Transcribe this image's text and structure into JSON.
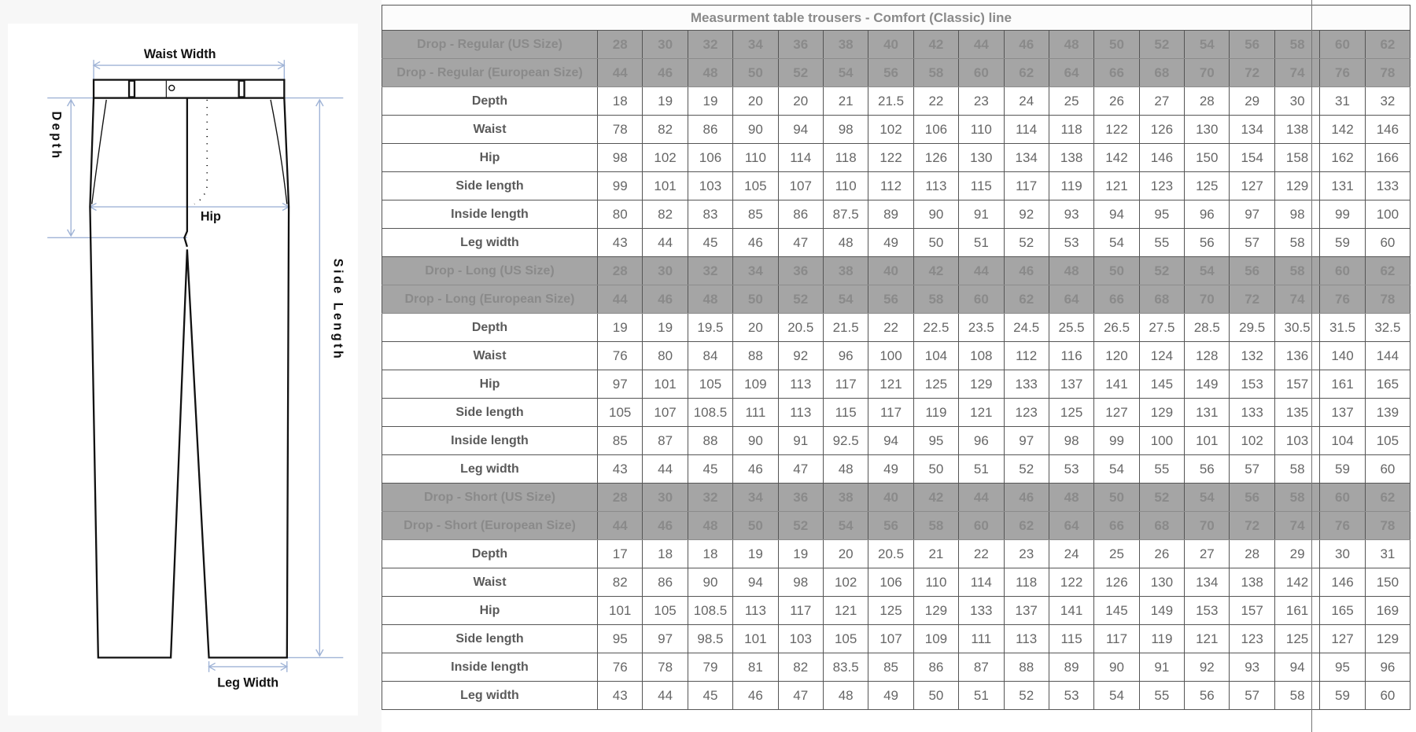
{
  "diagram": {
    "labels": {
      "waist_width": "Waist Width",
      "depth": "Depth",
      "hip": "Hip",
      "side_length": "Side Length",
      "leg_width": "Leg Width"
    },
    "colors": {
      "measure_line": "#9fb3d6",
      "outline": "#111111"
    }
  },
  "table": {
    "title": "Measurment table trousers - Comfort (Classic) line",
    "colors": {
      "header_bg": "#a5a5a5",
      "header_text": "#8a8a8a",
      "border": "#555555",
      "text": "#666666"
    },
    "sections": [
      {
        "us_label": "Drop - Regular (US Size)",
        "us_sizes": [
          "28",
          "30",
          "32",
          "34",
          "36",
          "38",
          "40",
          "42",
          "44",
          "46",
          "48",
          "50",
          "52",
          "54",
          "56",
          "58",
          "60",
          "62"
        ],
        "eu_label": "Drop - Regular (European Size)",
        "eu_sizes": [
          "44",
          "46",
          "48",
          "50",
          "52",
          "54",
          "56",
          "58",
          "60",
          "62",
          "64",
          "66",
          "68",
          "70",
          "72",
          "74",
          "76",
          "78"
        ],
        "rows": [
          {
            "label": "Depth",
            "values": [
              "18",
              "19",
              "19",
              "20",
              "20",
              "21",
              "21.5",
              "22",
              "23",
              "24",
              "25",
              "26",
              "27",
              "28",
              "29",
              "30",
              "31",
              "32"
            ]
          },
          {
            "label": "Waist",
            "values": [
              "78",
              "82",
              "86",
              "90",
              "94",
              "98",
              "102",
              "106",
              "110",
              "114",
              "118",
              "122",
              "126",
              "130",
              "134",
              "138",
              "142",
              "146"
            ]
          },
          {
            "label": "Hip",
            "values": [
              "98",
              "102",
              "106",
              "110",
              "114",
              "118",
              "122",
              "126",
              "130",
              "134",
              "138",
              "142",
              "146",
              "150",
              "154",
              "158",
              "162",
              "166"
            ]
          },
          {
            "label": "Side length",
            "values": [
              "99",
              "101",
              "103",
              "105",
              "107",
              "110",
              "112",
              "113",
              "115",
              "117",
              "119",
              "121",
              "123",
              "125",
              "127",
              "129",
              "131",
              "133"
            ]
          },
          {
            "label": "Inside length",
            "values": [
              "80",
              "82",
              "83",
              "85",
              "86",
              "87.5",
              "89",
              "90",
              "91",
              "92",
              "93",
              "94",
              "95",
              "96",
              "97",
              "98",
              "99",
              "100"
            ]
          },
          {
            "label": "Leg width",
            "values": [
              "43",
              "44",
              "45",
              "46",
              "47",
              "48",
              "49",
              "50",
              "51",
              "52",
              "53",
              "54",
              "55",
              "56",
              "57",
              "58",
              "59",
              "60"
            ]
          }
        ]
      },
      {
        "us_label": "Drop - Long (US Size)",
        "us_sizes": [
          "28",
          "30",
          "32",
          "34",
          "36",
          "38",
          "40",
          "42",
          "44",
          "46",
          "48",
          "50",
          "52",
          "54",
          "56",
          "58",
          "60",
          "62"
        ],
        "eu_label": "Drop - Long (European Size)",
        "eu_sizes": [
          "44",
          "46",
          "48",
          "50",
          "52",
          "54",
          "56",
          "58",
          "60",
          "62",
          "64",
          "66",
          "68",
          "70",
          "72",
          "74",
          "76",
          "78"
        ],
        "rows": [
          {
            "label": "Depth",
            "values": [
              "19",
              "19",
              "19.5",
              "20",
              "20.5",
              "21.5",
              "22",
              "22.5",
              "23.5",
              "24.5",
              "25.5",
              "26.5",
              "27.5",
              "28.5",
              "29.5",
              "30.5",
              "31.5",
              "32.5"
            ]
          },
          {
            "label": "Waist",
            "values": [
              "76",
              "80",
              "84",
              "88",
              "92",
              "96",
              "100",
              "104",
              "108",
              "112",
              "116",
              "120",
              "124",
              "128",
              "132",
              "136",
              "140",
              "144"
            ]
          },
          {
            "label": "Hip",
            "values": [
              "97",
              "101",
              "105",
              "109",
              "113",
              "117",
              "121",
              "125",
              "129",
              "133",
              "137",
              "141",
              "145",
              "149",
              "153",
              "157",
              "161",
              "165"
            ]
          },
          {
            "label": "Side length",
            "values": [
              "105",
              "107",
              "108.5",
              "111",
              "113",
              "115",
              "117",
              "119",
              "121",
              "123",
              "125",
              "127",
              "129",
              "131",
              "133",
              "135",
              "137",
              "139"
            ]
          },
          {
            "label": "Inside length",
            "values": [
              "85",
              "87",
              "88",
              "90",
              "91",
              "92.5",
              "94",
              "95",
              "96",
              "97",
              "98",
              "99",
              "100",
              "101",
              "102",
              "103",
              "104",
              "105"
            ]
          },
          {
            "label": "Leg width",
            "values": [
              "43",
              "44",
              "45",
              "46",
              "47",
              "48",
              "49",
              "50",
              "51",
              "52",
              "53",
              "54",
              "55",
              "56",
              "57",
              "58",
              "59",
              "60"
            ]
          }
        ]
      },
      {
        "us_label": "Drop - Short (US Size)",
        "us_sizes": [
          "28",
          "30",
          "32",
          "34",
          "36",
          "38",
          "40",
          "42",
          "44",
          "46",
          "48",
          "50",
          "52",
          "54",
          "56",
          "58",
          "60",
          "62"
        ],
        "eu_label": "Drop - Short (European Size)",
        "eu_sizes": [
          "44",
          "46",
          "48",
          "50",
          "52",
          "54",
          "56",
          "58",
          "60",
          "62",
          "64",
          "66",
          "68",
          "70",
          "72",
          "74",
          "76",
          "78"
        ],
        "rows": [
          {
            "label": "Depth",
            "values": [
              "17",
              "18",
              "18",
              "19",
              "19",
              "20",
              "20.5",
              "21",
              "22",
              "23",
              "24",
              "25",
              "26",
              "27",
              "28",
              "29",
              "30",
              "31"
            ]
          },
          {
            "label": "Waist",
            "values": [
              "82",
              "86",
              "90",
              "94",
              "98",
              "102",
              "106",
              "110",
              "114",
              "118",
              "122",
              "126",
              "130",
              "134",
              "138",
              "142",
              "146",
              "150"
            ]
          },
          {
            "label": "Hip",
            "values": [
              "101",
              "105",
              "108.5",
              "113",
              "117",
              "121",
              "125",
              "129",
              "133",
              "137",
              "141",
              "145",
              "149",
              "153",
              "157",
              "161",
              "165",
              "169"
            ]
          },
          {
            "label": "Side length",
            "values": [
              "95",
              "97",
              "98.5",
              "101",
              "103",
              "105",
              "107",
              "109",
              "111",
              "113",
              "115",
              "117",
              "119",
              "121",
              "123",
              "125",
              "127",
              "129"
            ]
          },
          {
            "label": "Inside length",
            "values": [
              "76",
              "78",
              "79",
              "81",
              "82",
              "83.5",
              "85",
              "86",
              "87",
              "88",
              "89",
              "90",
              "91",
              "92",
              "93",
              "94",
              "95",
              "96"
            ]
          },
          {
            "label": "Leg width",
            "values": [
              "43",
              "44",
              "45",
              "46",
              "47",
              "48",
              "49",
              "50",
              "51",
              "52",
              "53",
              "54",
              "55",
              "56",
              "57",
              "58",
              "59",
              "60"
            ]
          }
        ]
      }
    ]
  }
}
